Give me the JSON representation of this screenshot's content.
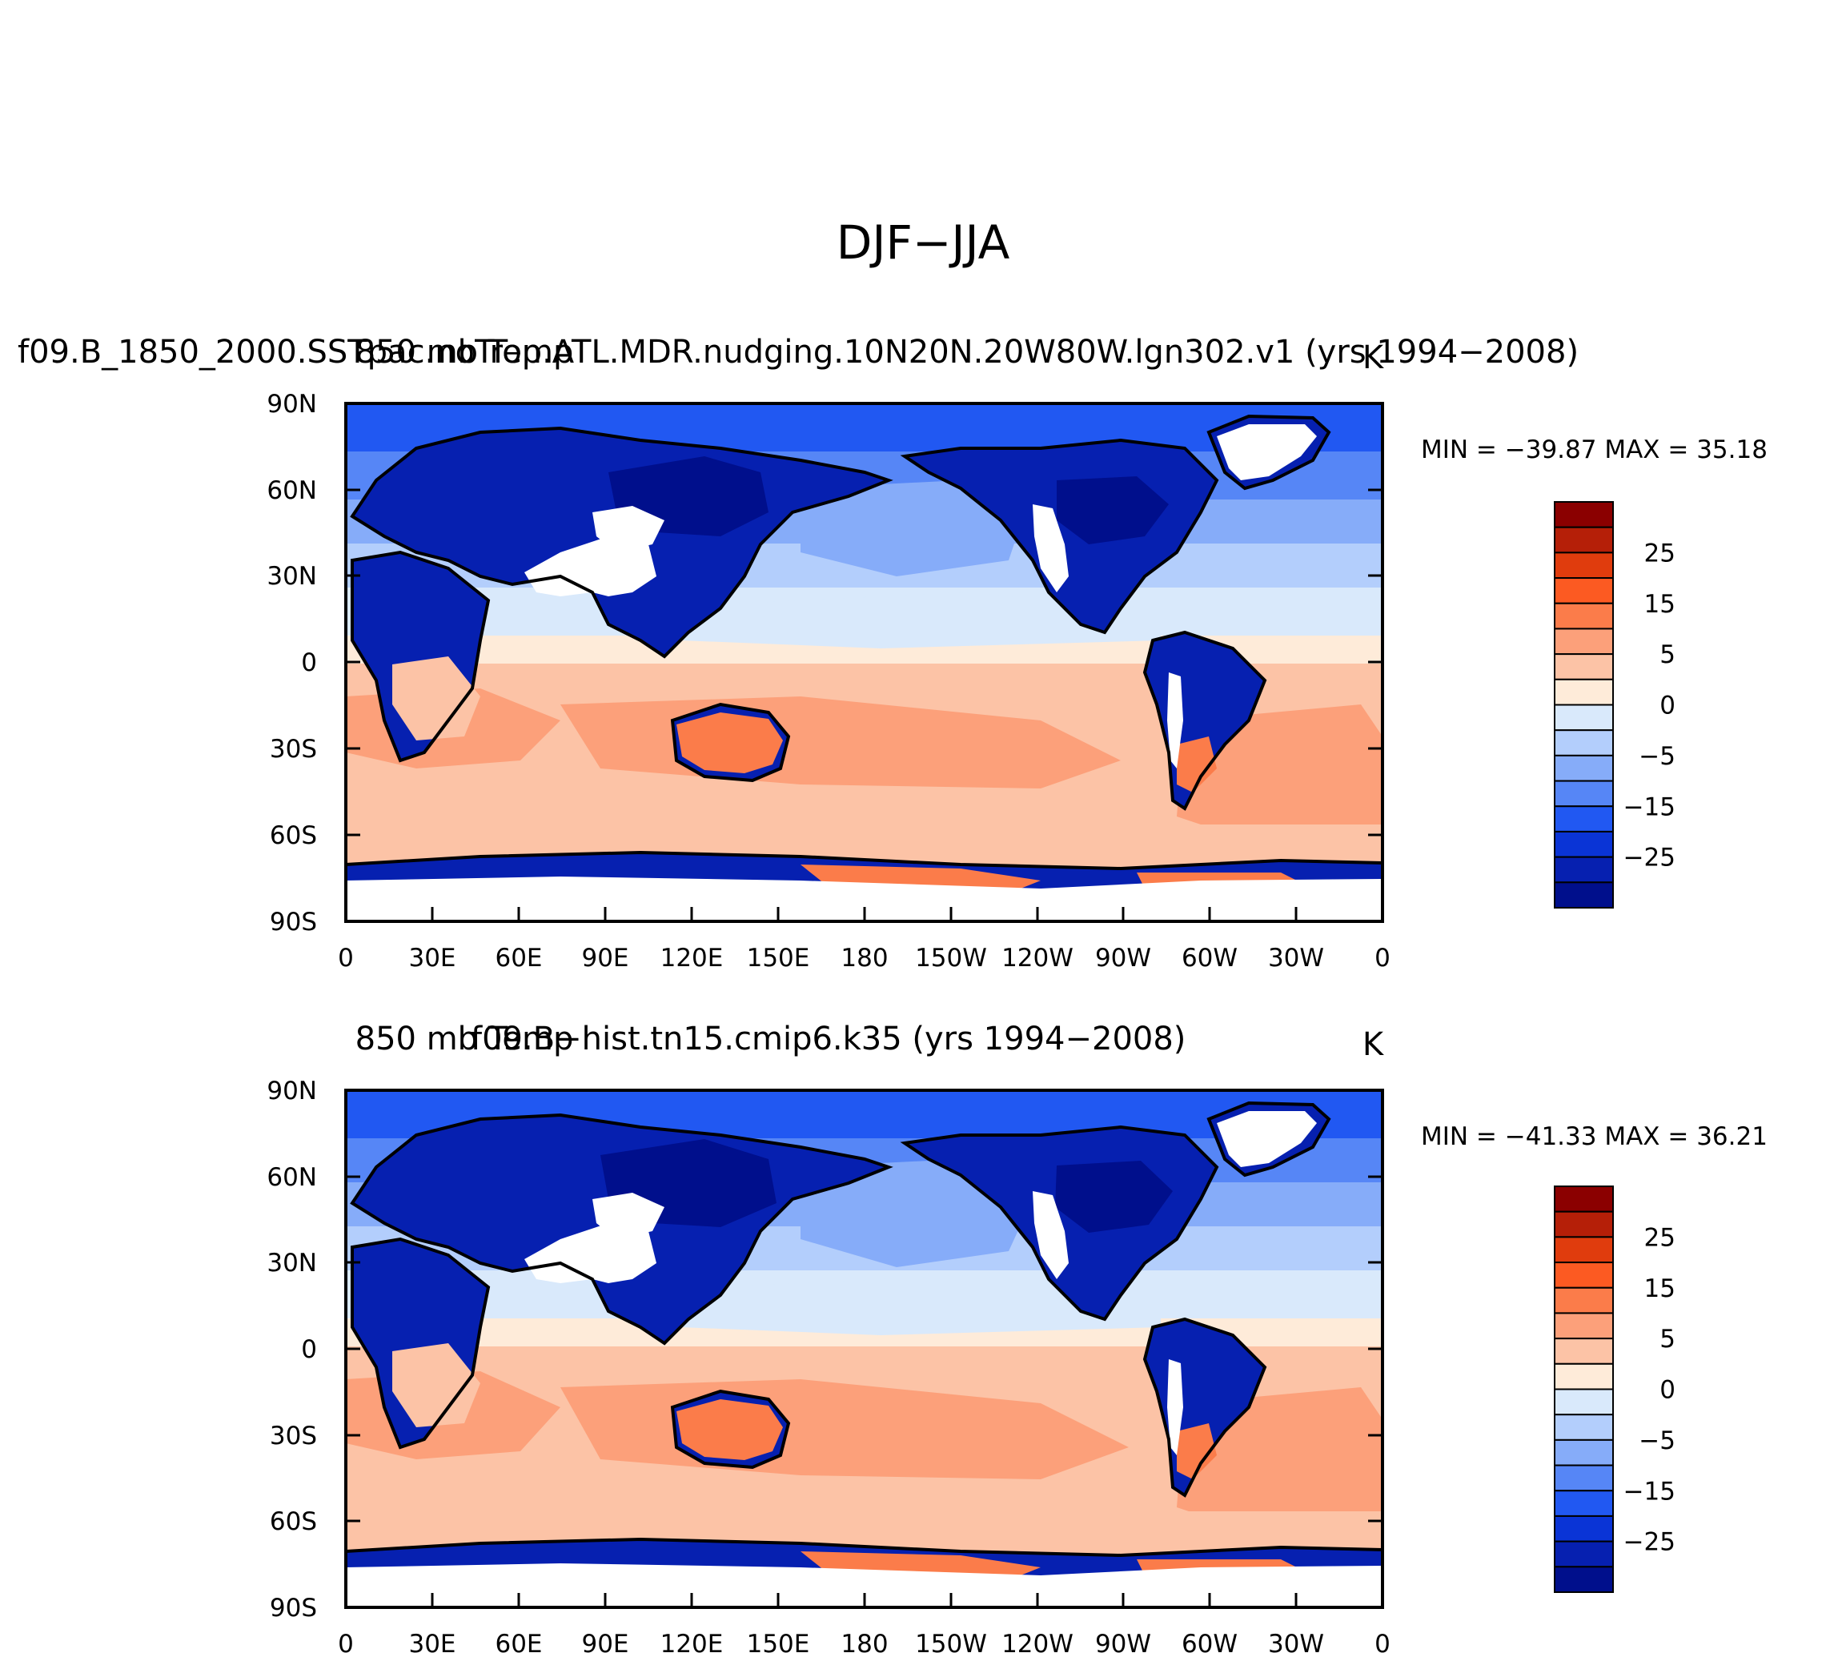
{
  "title": "DJF−JJA",
  "panels": [
    {
      "left_string": "f09.B_1850_2000.SSTpac.noTrop.ATL.MDR.nudging.10N20N.20W80W.lgn302.v1 (yrs 1994−2008)",
      "center_string": "850 mb Temp",
      "units": "K",
      "min_max": "MIN = −39.87 MAX =   35.18"
    },
    {
      "left_string": "f09.B−hist.tn15.cmip6.k35 (yrs 1994−2008)",
      "center_string": "850 mb Temp",
      "units": "K",
      "min_max": "MIN = −41.33 MAX =   36.21"
    }
  ],
  "lat_labels": [
    "90N",
    "60N",
    "30N",
    "0",
    "30S",
    "60S",
    "90S"
  ],
  "lon_labels": [
    "0",
    "30E",
    "60E",
    "90E",
    "120E",
    "150E",
    "180",
    "150W",
    "120W",
    "90W",
    "60W",
    "30W",
    "0"
  ],
  "colorbar": {
    "labels": [
      "25",
      "15",
      "5",
      "0",
      "−5",
      "−15",
      "−25"
    ],
    "colors_top_to_bottom": [
      "#8b0000",
      "#b51f08",
      "#e03c0d",
      "#fc5a22",
      "#fb7c4a",
      "#fca07a",
      "#fcc3a6",
      "#feebd9",
      "#d9e9fb",
      "#b3cefc",
      "#86acf9",
      "#5686f6",
      "#2158f2",
      "#0a34d6",
      "#0620b0",
      "#000f8c"
    ]
  },
  "chart_data": [
    {
      "type": "heatmap",
      "title": "DJF−JJA",
      "variable": "850 mb Temp",
      "units": "K",
      "dataset": "f09.B_1850_2000.SSTpac.noTrop.ATL.MDR.nudging.10N20N.20W80W.lgn302.v1",
      "years": "1994−2008",
      "min": -39.87,
      "max": 35.18,
      "xlim": [
        0,
        360
      ],
      "ylim": [
        -90,
        90
      ],
      "contour_levels": [
        -35,
        -30,
        -25,
        -20,
        -15,
        -10,
        -5,
        0,
        5,
        10,
        15,
        20,
        25,
        30,
        35
      ]
    },
    {
      "type": "heatmap",
      "title": "DJF−JJA",
      "variable": "850 mb Temp",
      "units": "K",
      "dataset": "f09.B−hist.tn15.cmip6.k35",
      "years": "1994−2008",
      "min": -41.33,
      "max": 36.21,
      "xlim": [
        0,
        360
      ],
      "ylim": [
        -90,
        90
      ],
      "contour_levels": [
        -35,
        -30,
        -25,
        -20,
        -15,
        -10,
        -5,
        0,
        5,
        10,
        15,
        20,
        25,
        30,
        35
      ]
    }
  ]
}
